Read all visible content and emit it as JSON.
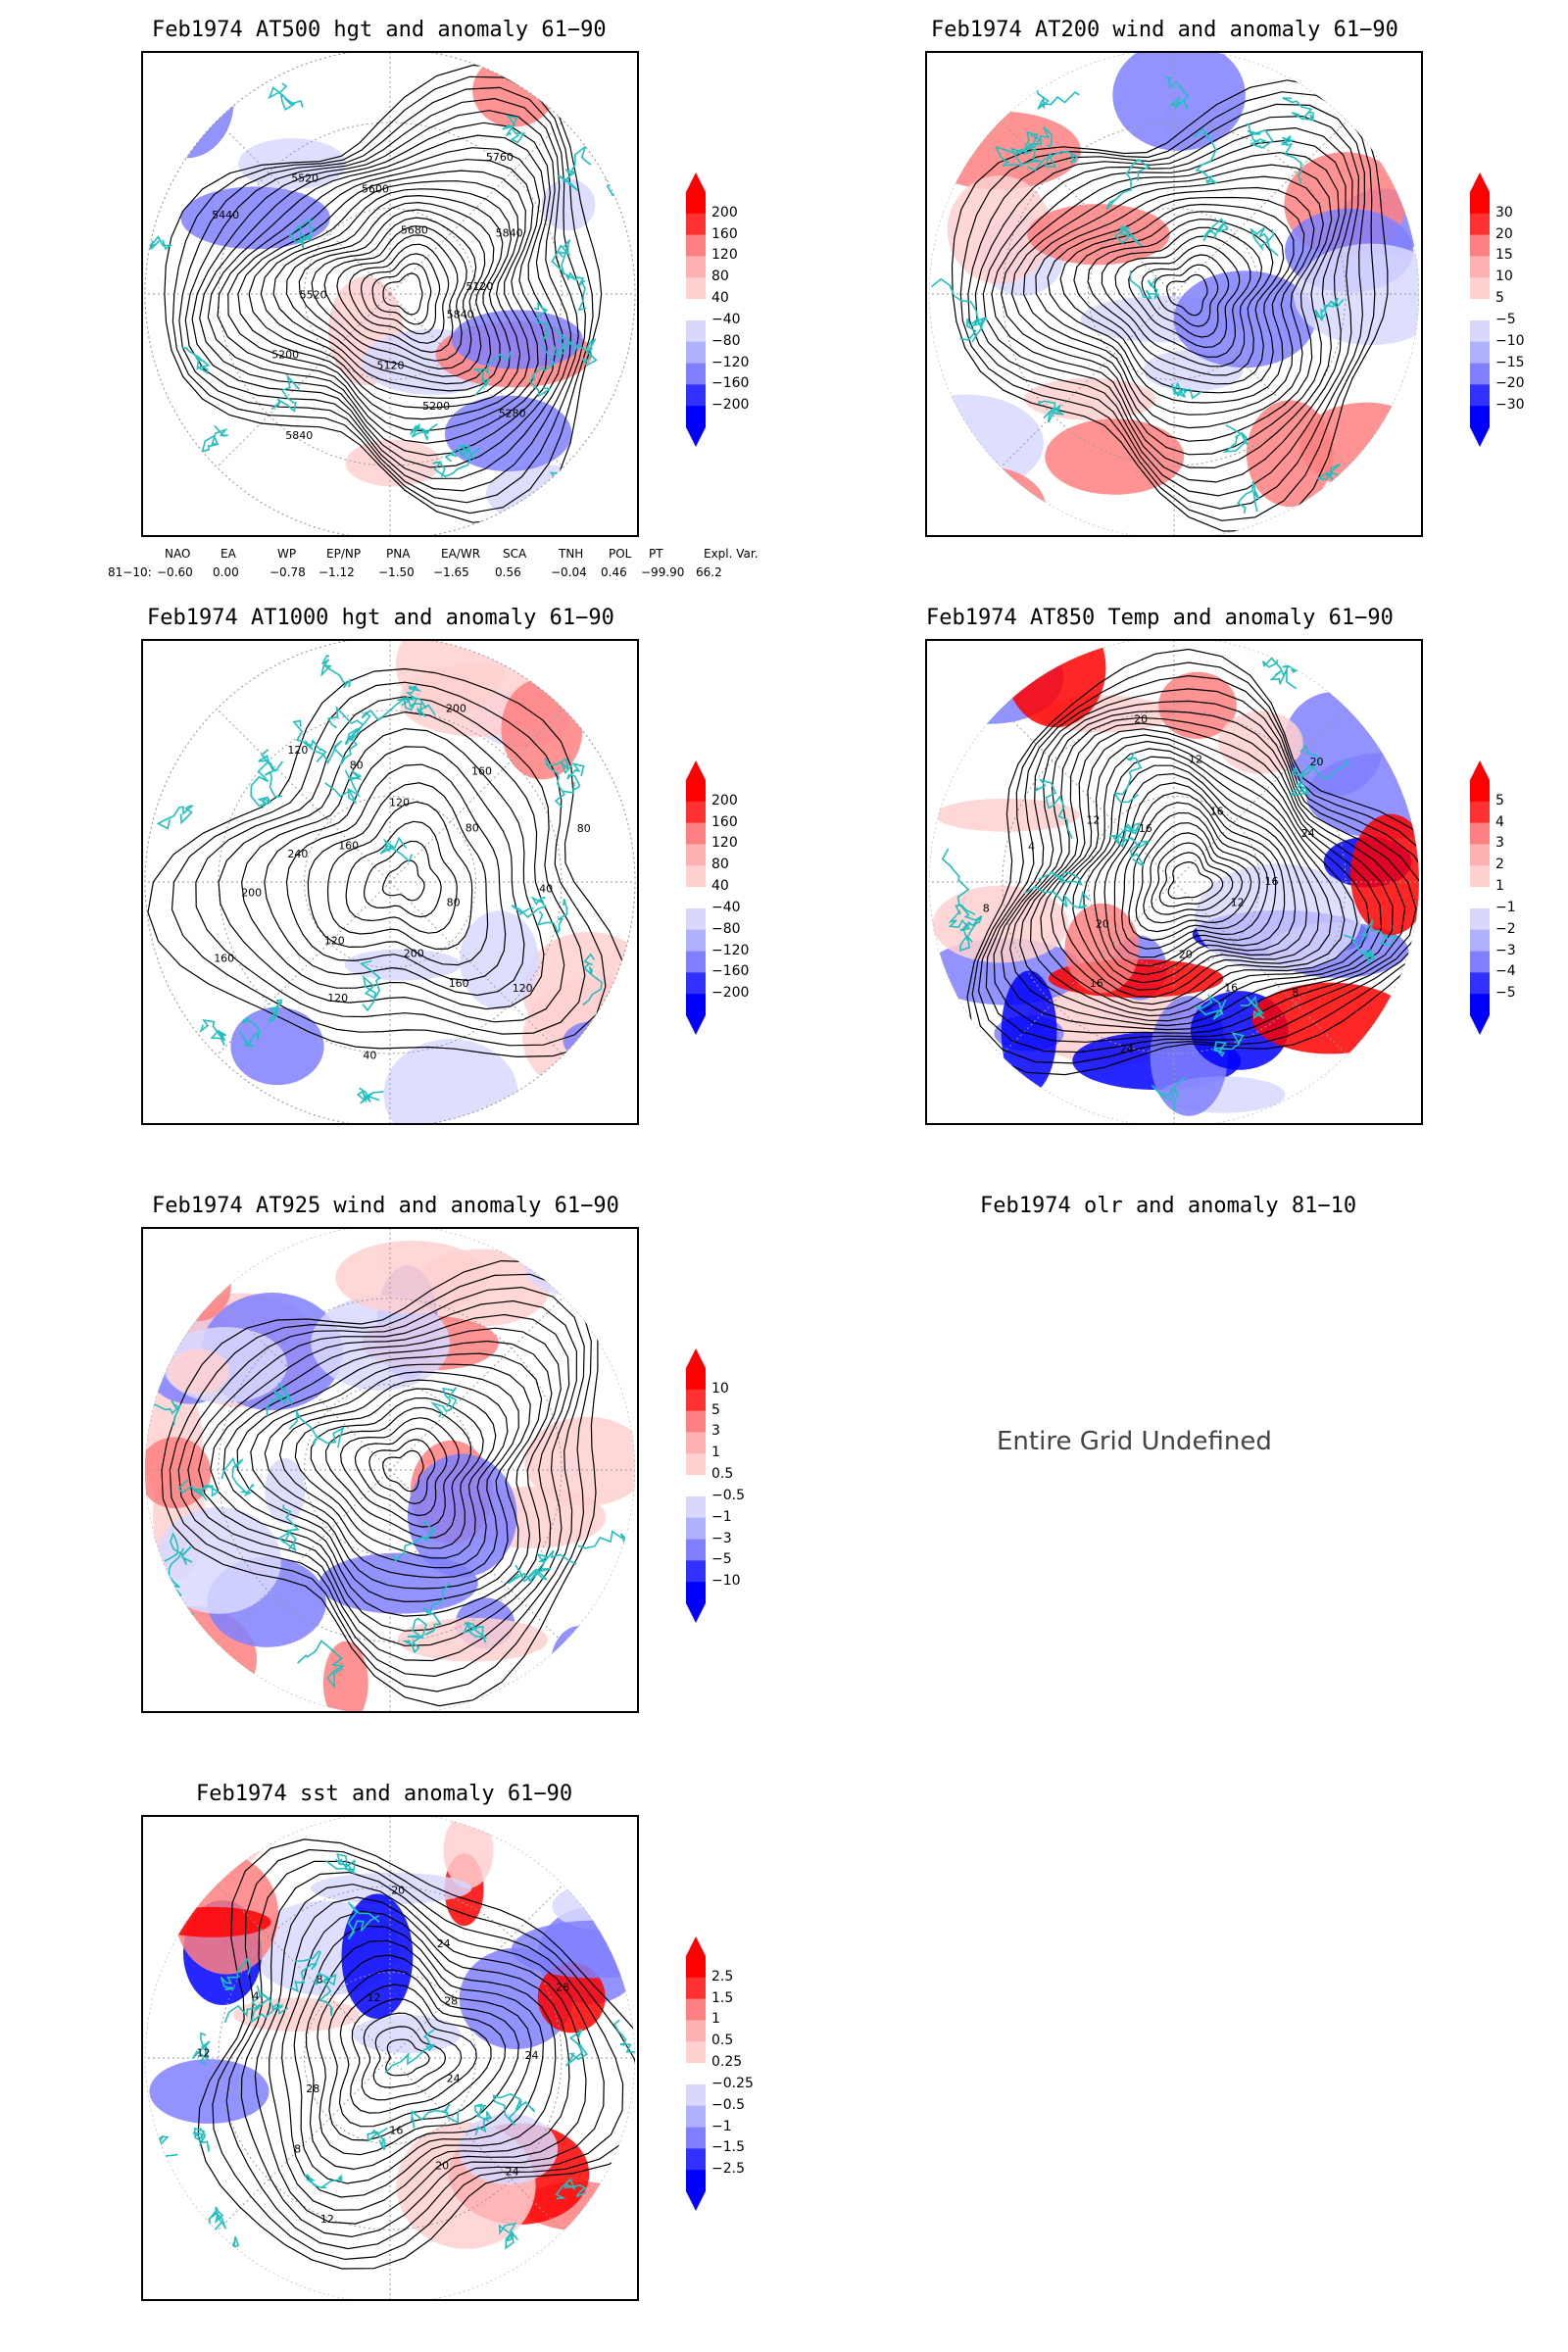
{
  "panels": [
    {
      "id": "p500",
      "title": "Feb1974 AT500 hgt and anomaly 61−90",
      "colorbar": [
        "200",
        "160",
        "120",
        "80",
        "40",
        "−40",
        "−80",
        "−120",
        "−160",
        "−200"
      ],
      "contour_labels": [
        "5840",
        "5280",
        "5200",
        "5120",
        "5840",
        "5200",
        "5520",
        "5440",
        "5520",
        "5600",
        "5680",
        "5760",
        "5840",
        "5120"
      ]
    },
    {
      "id": "p200",
      "title": "Feb1974 AT200 wind and anomaly 61−90",
      "colorbar": [
        "30",
        "20",
        "15",
        "10",
        "5",
        "−5",
        "−10",
        "−15",
        "−20",
        "−30"
      ]
    },
    {
      "id": "p1000",
      "title": "Feb1974 AT1000 hgt and anomaly 61−90",
      "colorbar": [
        "200",
        "160",
        "120",
        "80",
        "40",
        "−40",
        "−80",
        "−120",
        "−160",
        "−200"
      ],
      "contour_labels": [
        "80",
        "120",
        "160",
        "200",
        "40",
        "120",
        "120",
        "160",
        "200",
        "240",
        "160",
        "120",
        "80",
        "120",
        "200",
        "160",
        "80",
        "80",
        "40"
      ]
    },
    {
      "id": "p850",
      "title": "Feb1974 AT850 Temp and anomaly 61−90",
      "colorbar": [
        "5",
        "4",
        "3",
        "2",
        "1",
        "−1",
        "−2",
        "−3",
        "−4",
        "−5"
      ],
      "contour_labels": [
        "12",
        "8",
        "16",
        "20",
        "24",
        "16",
        "20",
        "8",
        "4",
        "12",
        "16",
        "20",
        "12",
        "16",
        "20",
        "24",
        "16"
      ]
    },
    {
      "id": "p925",
      "title": "Feb1974 AT925 wind and anomaly 61−90",
      "colorbar": [
        "10",
        "5",
        "3",
        "1",
        "0.5",
        "−0.5",
        "−1",
        "−3",
        "−5",
        "−10"
      ]
    },
    {
      "id": "polr",
      "title": "Feb1974 olr and anomaly 81−10",
      "undefined_text": "Entire Grid Undefined"
    },
    {
      "id": "psst",
      "title": "Feb1974 sst and anomaly 61−90",
      "colorbar": [
        "2.5",
        "1.5",
        "1",
        "0.5",
        "0.25",
        "−0.25",
        "−0.5",
        "−1",
        "−1.5",
        "−2.5"
      ],
      "contour_labels": [
        "24",
        "24",
        "20",
        "16",
        "12",
        "8",
        "28",
        "12",
        "4",
        "8",
        "12",
        "20",
        "24",
        "28",
        "28",
        "24"
      ]
    }
  ],
  "indices": {
    "headers": [
      "NAO",
      "EA",
      "WP",
      "EP/NP",
      "PNA",
      "EA/WR",
      "SCA",
      "TNH",
      "POL",
      "PT",
      "Expl. Var."
    ],
    "row_label": "81−10:",
    "values": [
      "−0.60",
      "0.00",
      "−0.78",
      "−1.12",
      "−1.50",
      "−1.65",
      "0.56",
      "−0.04",
      "0.46",
      "−99.90",
      "66.2"
    ]
  },
  "colors": {
    "positive_strong": "#ff0000",
    "positive_mid": "#ff8080",
    "positive_light": "#ffd0d0",
    "negative_light": "#d8d8ff",
    "negative_mid": "#8080ff",
    "negative_strong": "#0000ff",
    "coastline": "#20c0c0",
    "contour": "#000000"
  }
}
